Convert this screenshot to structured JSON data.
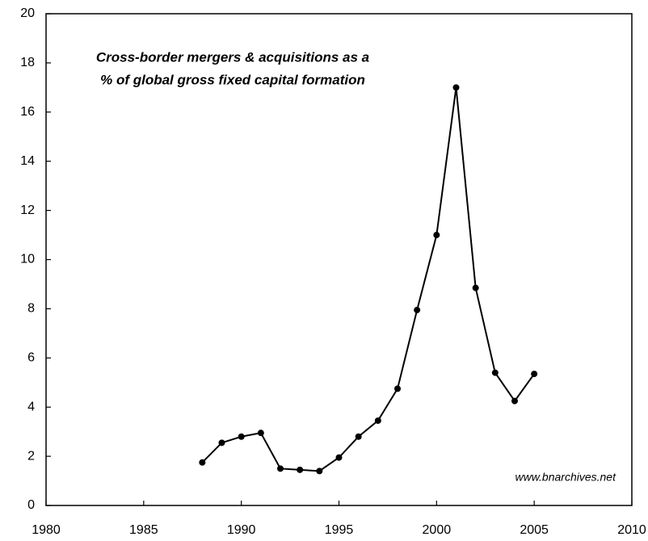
{
  "chart_data": {
    "type": "line",
    "title": [
      "Cross-border mergers & acquisitions as a",
      "% of  global gross fixed capital formation"
    ],
    "annotation": "www.bnarchives.net",
    "x": [
      1988,
      1989,
      1990,
      1991,
      1992,
      1993,
      1994,
      1995,
      1996,
      1997,
      1998,
      1999,
      2000,
      2001,
      2002,
      2003,
      2004,
      2005
    ],
    "series": [
      {
        "name": "Cross-border M&A",
        "color": "#000000",
        "values": [
          1.75,
          2.55,
          2.8,
          2.95,
          1.5,
          1.45,
          1.4,
          1.95,
          2.8,
          3.45,
          4.75,
          7.95,
          11.0,
          17.0,
          8.85,
          5.4,
          4.25,
          5.35
        ]
      }
    ],
    "xlim": [
      1980,
      2010
    ],
    "xticks": [
      1980,
      1985,
      1990,
      1995,
      2000,
      2005,
      2010
    ],
    "ylim": [
      0,
      20
    ],
    "yticks": [
      0,
      2,
      4,
      6,
      8,
      10,
      12,
      14,
      16,
      18,
      20
    ],
    "grid": false
  }
}
